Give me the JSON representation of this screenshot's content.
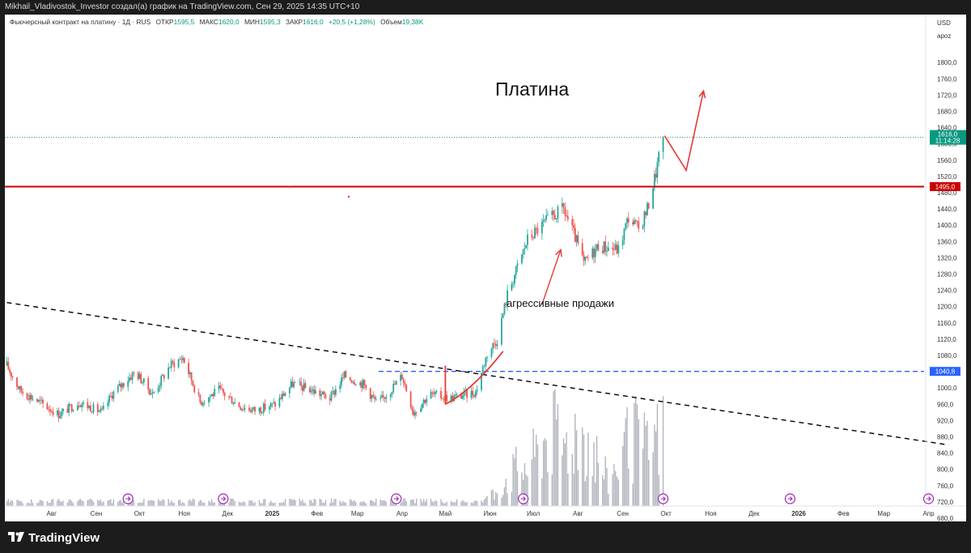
{
  "header": {
    "attribution": "Mikhail_Vladivostok_Investor создал(а) график на TradingView.com, Сен 29, 2025 14:35 UTC+10"
  },
  "legend": {
    "instrument": "Фьючерсный контракт на платину · 1Д · RUS",
    "open_label": "ОТКР",
    "open_value": "1595,5",
    "high_label": "МАКС",
    "high_value": "1620,0",
    "low_label": "МИН",
    "low_value": "1595,3",
    "close_label": "ЗАКР",
    "close_value": "1616,0",
    "change": "+20,5 (+1,28%)",
    "volume_label": "Объем",
    "volume_value": "19,38K"
  },
  "price_scale": {
    "currency": "USD",
    "mode": "apoz",
    "ticks": [
      "1800,0",
      "1760,0",
      "1720,0",
      "1680,0",
      "1640,0",
      "1600,0",
      "1560,0",
      "1520,0",
      "1480,0",
      "1440,0",
      "1400,0",
      "1360,0",
      "1320,0",
      "1280,0",
      "1240,0",
      "1200,0",
      "1160,0",
      "1120,0",
      "1080,0",
      "1040,0",
      "1000,0",
      "960,0",
      "920,0",
      "880,0",
      "840,0",
      "800,0",
      "760,0",
      "720,0",
      "680,0"
    ],
    "last_price_label": "1616,0",
    "countdown_label": "11:14:28",
    "resistance_label": "1495,0",
    "support_label": "1040,8"
  },
  "time_axis": {
    "labels": [
      "Авг",
      "Сен",
      "Окт",
      "Ноя",
      "Дек",
      "2025",
      "Фев",
      "Мар",
      "Апр",
      "Май",
      "Июн",
      "Июл",
      "Авг",
      "Сен",
      "Окт",
      "Ноя",
      "Дек",
      "2026",
      "Фев",
      "Мар",
      "Апр"
    ],
    "bold": [
      "2025",
      "2026"
    ]
  },
  "annotations": {
    "title": "Платина",
    "note": "агрессивные продажи"
  },
  "colors": {
    "up": "#26a69a",
    "down": "#ef5350",
    "resistance": "#cc0000",
    "support": "#2962ff",
    "trendline": "#000000",
    "last_price": "#089981",
    "event_marker": "#9c27b0",
    "volume": "#b2b5be",
    "arrow": "#e53935"
  },
  "icons": {
    "event": "dividend-event-icon",
    "brand": "tradingview-logo-icon"
  },
  "brand": {
    "name": "TradingView"
  },
  "chart_data": {
    "type": "candlestick",
    "title": "Платина",
    "ylim": [
      660,
      1820
    ],
    "levels": {
      "resistance": 1495.0,
      "support": 1040.8,
      "last": 1616.0
    },
    "trendline": {
      "from": [
        "2024-07-01",
        1210
      ],
      "to": [
        "2026-04-15",
        860
      ]
    },
    "projection_arrow": [
      [
        "2025-09-30",
        1620
      ],
      [
        "2025-10-15",
        1535
      ],
      [
        "2025-10-27",
        1730
      ]
    ],
    "note_arrow": {
      "from": [
        "2025-07-07",
        1205
      ],
      "to": [
        "2025-07-20",
        1340
      ]
    },
    "rebound_curve": [
      [
        "2025-05-01",
        960
      ],
      [
        "2025-05-20",
        995
      ],
      [
        "2025-06-10",
        1090
      ]
    ],
    "event_markers": [
      "2024-09-23",
      "2024-11-28",
      "2025-03-28",
      "2025-06-24",
      "2025-09-29",
      "2025-12-26",
      "2026-04-01"
    ],
    "anchors": [
      [
        "2024-07-01",
        1055
      ],
      [
        "2024-07-10",
        995
      ],
      [
        "2024-07-26",
        960
      ],
      [
        "2024-08-06",
        935
      ],
      [
        "2024-08-20",
        965
      ],
      [
        "2024-09-05",
        940
      ],
      [
        "2024-09-12",
        985
      ],
      [
        "2024-09-28",
        1040
      ],
      [
        "2024-10-10",
        985
      ],
      [
        "2024-10-22",
        1055
      ],
      [
        "2024-10-31",
        1075
      ],
      [
        "2024-11-12",
        965
      ],
      [
        "2024-11-25",
        995
      ],
      [
        "2024-12-10",
        955
      ],
      [
        "2024-12-20",
        945
      ],
      [
        "2025-01-03",
        960
      ],
      [
        "2025-01-15",
        1010
      ],
      [
        "2025-01-28",
        995
      ],
      [
        "2025-02-10",
        975
      ],
      [
        "2025-02-20",
        1030
      ],
      [
        "2025-03-05",
        1010
      ],
      [
        "2025-03-15",
        960
      ],
      [
        "2025-03-25",
        1000
      ],
      [
        "2025-04-01",
        1030
      ],
      [
        "2025-04-09",
        940
      ],
      [
        "2025-04-20",
        985
      ],
      [
        "2025-05-05",
        975
      ],
      [
        "2025-05-22",
        990
      ],
      [
        "2025-05-30",
        1085
      ],
      [
        "2025-06-06",
        1120
      ],
      [
        "2025-06-13",
        1230
      ],
      [
        "2025-06-27",
        1365
      ],
      [
        "2025-07-10",
        1410
      ],
      [
        "2025-07-22",
        1440
      ],
      [
        "2025-07-31",
        1360
      ],
      [
        "2025-08-05",
        1305
      ],
      [
        "2025-08-15",
        1350
      ],
      [
        "2025-08-29",
        1340
      ],
      [
        "2025-09-05",
        1420
      ],
      [
        "2025-09-12",
        1390
      ],
      [
        "2025-09-18",
        1440
      ],
      [
        "2025-09-24",
        1530
      ],
      [
        "2025-09-29",
        1616
      ]
    ],
    "volume_peaks": [
      [
        "2025-06-25",
        500
      ],
      [
        "2025-07-14",
        900
      ],
      [
        "2025-08-01",
        930
      ],
      [
        "2025-09-10",
        800
      ],
      [
        "2025-09-29",
        900
      ]
    ]
  }
}
